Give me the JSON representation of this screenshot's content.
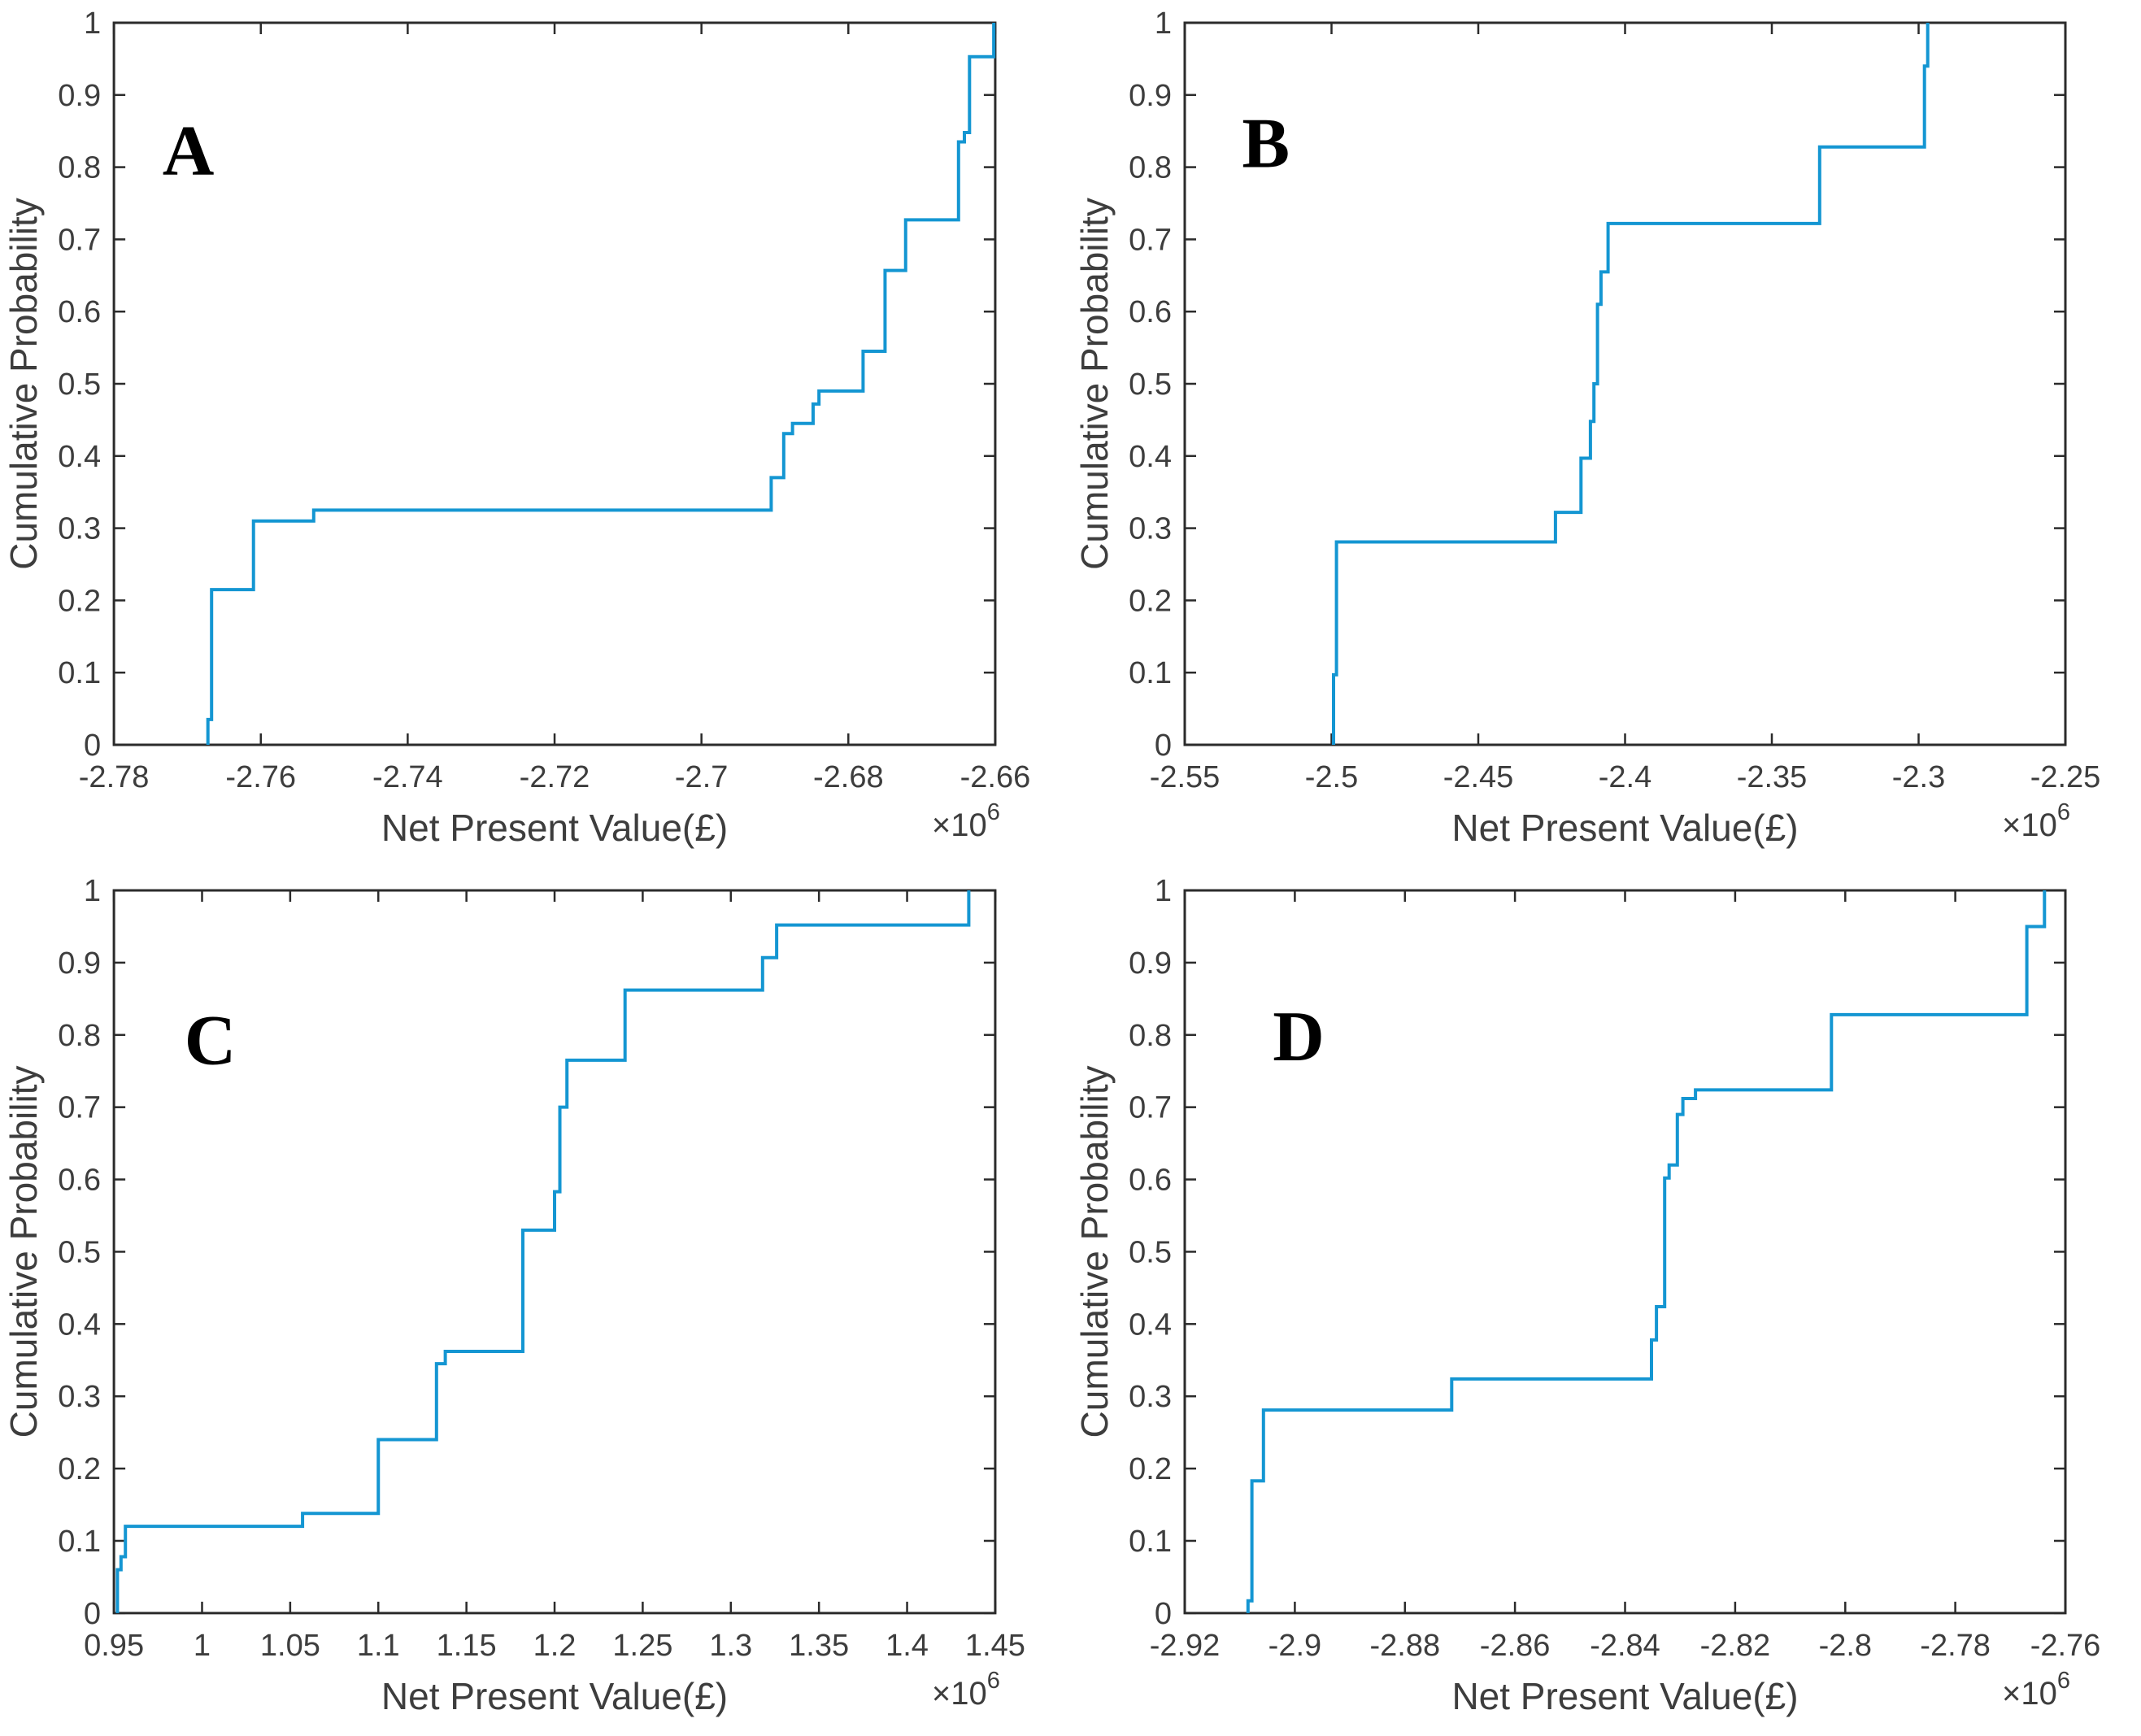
{
  "figure": {
    "description": "Four empirical cumulative distribution function step plots of Net Present Value",
    "background": "#ffffff"
  },
  "style": {
    "line_color": "#1496d2",
    "axis_color": "#2b2b2b",
    "text_color": "#3d3d3d",
    "label_color": "#3d3d3d"
  },
  "chart_data": [
    {
      "type": "line",
      "subtype": "cdf-step",
      "label": "A",
      "xlabel": "Net Present Value(£)",
      "ylabel": "Cumulative Probability",
      "exponent_prefix": "×10",
      "exponent_power": "6",
      "xlim": [
        -2.78,
        -2.66
      ],
      "ylim": [
        0,
        1
      ],
      "grid": false,
      "legend": "none",
      "xticks": [
        -2.78,
        -2.76,
        -2.74,
        -2.72,
        -2.7,
        -2.68,
        -2.66
      ],
      "xtick_labels": [
        "-2.78",
        "-2.76",
        "-2.74",
        "-2.72",
        "-2.7",
        "-2.68",
        "-2.66"
      ],
      "yticks": [
        0,
        0.1,
        0.2,
        0.3,
        0.4,
        0.5,
        0.6,
        0.7,
        0.8,
        0.9,
        1
      ],
      "ytick_labels": [
        "0",
        "0.1",
        "0.2",
        "0.3",
        "0.4",
        "0.5",
        "0.6",
        "0.7",
        "0.8",
        "0.9",
        "1"
      ],
      "label_pos": {
        "x_frac": 0.055,
        "y_frac": 0.21
      },
      "steps": [
        [
          -2.7672,
          0.035
        ],
        [
          -2.7667,
          0.215
        ],
        [
          -2.761,
          0.31
        ],
        [
          -2.7528,
          0.325
        ],
        [
          -2.6905,
          0.37
        ],
        [
          -2.6888,
          0.431
        ],
        [
          -2.6876,
          0.445
        ],
        [
          -2.6848,
          0.472
        ],
        [
          -2.684,
          0.49
        ],
        [
          -2.678,
          0.545
        ],
        [
          -2.675,
          0.657
        ],
        [
          -2.6722,
          0.727
        ],
        [
          -2.665,
          0.835
        ],
        [
          -2.6642,
          0.848
        ],
        [
          -2.6635,
          0.953
        ],
        [
          -2.6602,
          1.0
        ]
      ]
    },
    {
      "type": "line",
      "subtype": "cdf-step",
      "label": "B",
      "xlabel": "Net Present Value(£)",
      "ylabel": "Cumulative Probability",
      "exponent_prefix": "×10",
      "exponent_power": "6",
      "xlim": [
        -2.55,
        -2.25
      ],
      "ylim": [
        0,
        1
      ],
      "grid": false,
      "legend": "none",
      "xticks": [
        -2.55,
        -2.5,
        -2.45,
        -2.4,
        -2.35,
        -2.3,
        -2.25
      ],
      "xtick_labels": [
        "-2.55",
        "-2.5",
        "-2.45",
        "-2.4",
        "-2.35",
        "-2.3",
        "-2.25"
      ],
      "yticks": [
        0,
        0.1,
        0.2,
        0.3,
        0.4,
        0.5,
        0.6,
        0.7,
        0.8,
        0.9,
        1
      ],
      "ytick_labels": [
        "0",
        "0.1",
        "0.2",
        "0.3",
        "0.4",
        "0.5",
        "0.6",
        "0.7",
        "0.8",
        "0.9",
        "1"
      ],
      "label_pos": {
        "x_frac": 0.065,
        "y_frac": 0.2
      },
      "steps": [
        [
          -2.4993,
          0.097
        ],
        [
          -2.4983,
          0.281
        ],
        [
          -2.4237,
          0.322
        ],
        [
          -2.415,
          0.397
        ],
        [
          -2.4118,
          0.448
        ],
        [
          -2.4106,
          0.5
        ],
        [
          -2.4094,
          0.61
        ],
        [
          -2.4082,
          0.655
        ],
        [
          -2.4058,
          0.722
        ],
        [
          -2.3337,
          0.828
        ],
        [
          -2.298,
          0.94
        ],
        [
          -2.2969,
          1.0
        ]
      ]
    },
    {
      "type": "line",
      "subtype": "cdf-step",
      "label": "C",
      "xlabel": "Net Present Value(£)",
      "ylabel": "Cumulative Probability",
      "exponent_prefix": "×10",
      "exponent_power": "6",
      "xlim": [
        0.95,
        1.45
      ],
      "ylim": [
        0,
        1
      ],
      "grid": false,
      "legend": "none",
      "xticks": [
        0.95,
        1,
        1.05,
        1.1,
        1.15,
        1.2,
        1.25,
        1.3,
        1.35,
        1.4,
        1.45
      ],
      "xtick_labels": [
        "0.95",
        "1",
        "1.05",
        "1.1",
        "1.15",
        "1.2",
        "1.25",
        "1.3",
        "1.35",
        "1.4",
        "1.45"
      ],
      "yticks": [
        0,
        0.1,
        0.2,
        0.3,
        0.4,
        0.5,
        0.6,
        0.7,
        0.8,
        0.9,
        1
      ],
      "ytick_labels": [
        "0",
        "0.1",
        "0.2",
        "0.3",
        "0.4",
        "0.5",
        "0.6",
        "0.7",
        "0.8",
        "0.9",
        "1"
      ],
      "label_pos": {
        "x_frac": 0.08,
        "y_frac": 0.24
      },
      "steps": [
        [
          0.952,
          0.06
        ],
        [
          0.954,
          0.078
        ],
        [
          0.9565,
          0.12
        ],
        [
          1.057,
          0.138
        ],
        [
          1.1,
          0.24
        ],
        [
          1.133,
          0.345
        ],
        [
          1.138,
          0.362
        ],
        [
          1.182,
          0.53
        ],
        [
          1.2,
          0.583
        ],
        [
          1.203,
          0.7
        ],
        [
          1.207,
          0.765
        ],
        [
          1.24,
          0.862
        ],
        [
          1.318,
          0.907
        ],
        [
          1.326,
          0.952
        ],
        [
          1.435,
          1.0
        ]
      ]
    },
    {
      "type": "line",
      "subtype": "cdf-step",
      "label": "D",
      "xlabel": "Net Present Value(£)",
      "ylabel": "Cumulative Probability",
      "exponent_prefix": "×10",
      "exponent_power": "6",
      "xlim": [
        -2.92,
        -2.76
      ],
      "ylim": [
        0,
        1
      ],
      "grid": false,
      "legend": "none",
      "xticks": [
        -2.92,
        -2.9,
        -2.88,
        -2.86,
        -2.84,
        -2.82,
        -2.8,
        -2.78,
        -2.76
      ],
      "xtick_labels": [
        "-2.92",
        "-2.9",
        "-2.88",
        "-2.86",
        "-2.84",
        "-2.82",
        "-2.8",
        "-2.78",
        "-2.76"
      ],
      "yticks": [
        0,
        0.1,
        0.2,
        0.3,
        0.4,
        0.5,
        0.6,
        0.7,
        0.8,
        0.9,
        1
      ],
      "ytick_labels": [
        "0",
        "0.1",
        "0.2",
        "0.3",
        "0.4",
        "0.5",
        "0.6",
        "0.7",
        "0.8",
        "0.9",
        "1"
      ],
      "label_pos": {
        "x_frac": 0.1,
        "y_frac": 0.235
      },
      "steps": [
        [
          -2.9085,
          0.017
        ],
        [
          -2.9078,
          0.183
        ],
        [
          -2.9057,
          0.281
        ],
        [
          -2.8715,
          0.324
        ],
        [
          -2.8352,
          0.378
        ],
        [
          -2.8343,
          0.424
        ],
        [
          -2.8328,
          0.602
        ],
        [
          -2.832,
          0.62
        ],
        [
          -2.8305,
          0.69
        ],
        [
          -2.8295,
          0.712
        ],
        [
          -2.8272,
          0.724
        ],
        [
          -2.8025,
          0.828
        ],
        [
          -2.767,
          0.95
        ],
        [
          -2.7638,
          1.0
        ]
      ]
    }
  ]
}
